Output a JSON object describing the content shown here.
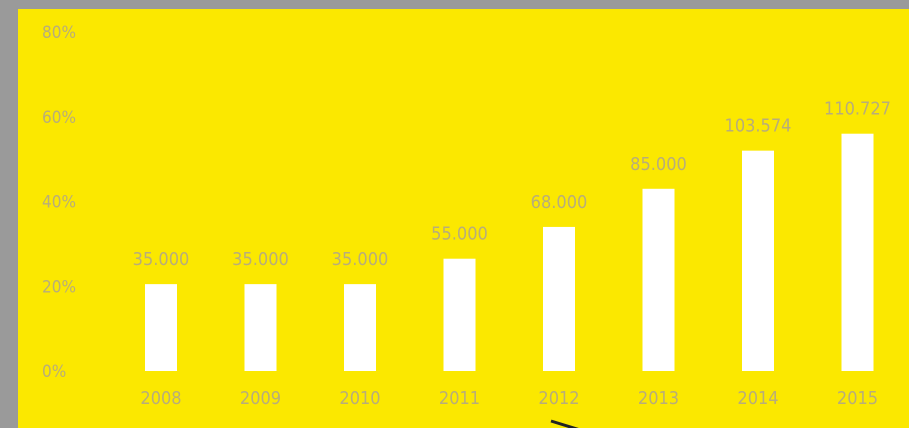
{
  "chart_data": {
    "type": "bar",
    "categories": [
      "2008",
      "2009",
      "2010",
      "2011",
      "2012",
      "2013",
      "2014",
      "2015"
    ],
    "values": [
      20.5,
      20.5,
      20.5,
      26.5,
      34,
      43,
      52,
      56
    ],
    "data_labels": [
      "35.000",
      "35.000",
      "35.000",
      "55.000",
      "68.000",
      "85.000",
      "103.574",
      "110.727"
    ],
    "y_ticks": [
      "0%",
      "20%",
      "40%",
      "60%",
      "80%"
    ],
    "ylim": [
      0,
      80
    ],
    "grid": false,
    "legend": "none",
    "title": "",
    "xlabel": "",
    "ylabel": ""
  },
  "colors": {
    "background": "#fbe800",
    "bar": "#ffffff",
    "text": "#b8ad7a",
    "frame": "#9a9a9a"
  }
}
